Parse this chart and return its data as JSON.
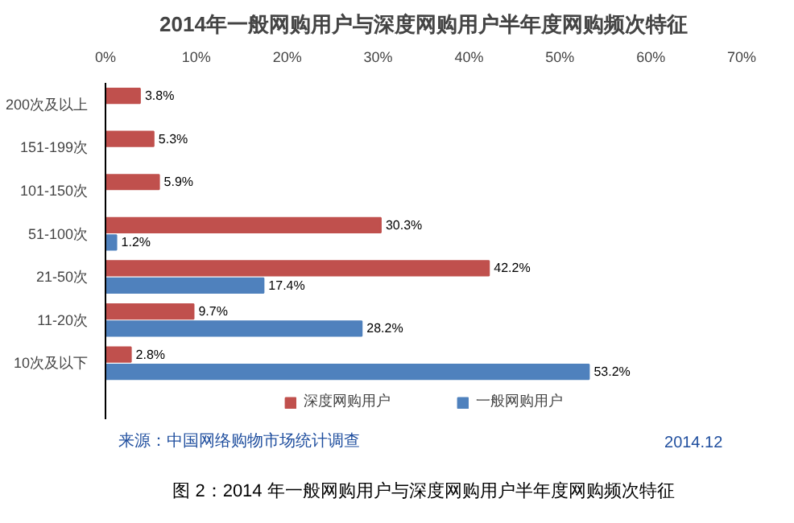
{
  "chart_data": {
    "type": "bar",
    "orientation": "horizontal",
    "title": "2014年一般网购用户与深度网购用户半年度网购频次特征",
    "categories": [
      "200次及以上",
      "151-199次",
      "101-150次",
      "51-100次",
      "21-50次",
      "11-20次",
      "10次及以下"
    ],
    "series": [
      {
        "name": "深度网购用户",
        "color": "#c0504d",
        "values": [
          3.8,
          5.3,
          5.9,
          30.3,
          42.2,
          9.7,
          2.8
        ],
        "value_labels": [
          "3.8%",
          "5.3%",
          "5.9%",
          "30.3%",
          "42.2%",
          "9.7%",
          "2.8%"
        ]
      },
      {
        "name": "一般网购用户",
        "color": "#4f81bd",
        "values": [
          null,
          null,
          null,
          1.2,
          17.4,
          28.2,
          53.2
        ],
        "value_labels": [
          null,
          null,
          null,
          "1.2%",
          "17.4%",
          "28.2%",
          "53.2%"
        ]
      }
    ],
    "xlim": [
      0,
      70
    ],
    "xticks": [
      {
        "value": 0,
        "label": "0%"
      },
      {
        "value": 10,
        "label": "10%"
      },
      {
        "value": 20,
        "label": "20%"
      },
      {
        "value": 30,
        "label": "30%"
      },
      {
        "value": 40,
        "label": "40%"
      },
      {
        "value": 50,
        "label": "50%"
      },
      {
        "value": 60,
        "label": "60%"
      },
      {
        "value": 70,
        "label": "70%"
      }
    ],
    "grid": false,
    "legend": "bottom",
    "annotations": [
      "来源：中国网络购物市场统计调查",
      "2014.12",
      "图 2：2014 年一般网购用户与深度网购用户半年度网购频次特征"
    ]
  }
}
